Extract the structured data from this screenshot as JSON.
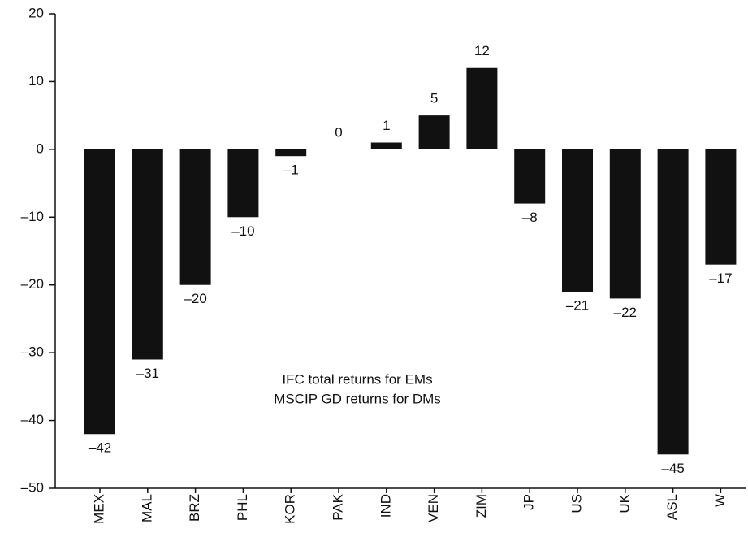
{
  "chart_data": {
    "type": "bar",
    "categories": [
      "MEX",
      "MAL",
      "BRZ",
      "PHL",
      "KOR",
      "PAK",
      "IND",
      "VEN",
      "ZIM",
      "JP",
      "US",
      "UK",
      "ASL",
      "W"
    ],
    "values": [
      -42,
      -31,
      -20,
      -10,
      -1,
      0,
      1,
      5,
      12,
      -8,
      -21,
      -22,
      -45,
      -17
    ],
    "value_labels": [
      "–42",
      "–31",
      "–20",
      "–10",
      "–1",
      "0",
      "1",
      "5",
      "12",
      "–8",
      "–21",
      "–22",
      "–45",
      "–17"
    ],
    "color": "#111111",
    "ylim": [
      -50,
      20
    ],
    "yticks": [
      {
        "value": -50,
        "label": "–50"
      },
      {
        "value": -40,
        "label": "–40"
      },
      {
        "value": -30,
        "label": "–30"
      },
      {
        "value": -20,
        "label": "–20"
      },
      {
        "value": -10,
        "label": "–10"
      },
      0,
      10,
      20
    ],
    "annotations": [
      "IFC total returns for EMs",
      "MSCIP GD returns for DMs"
    ]
  }
}
